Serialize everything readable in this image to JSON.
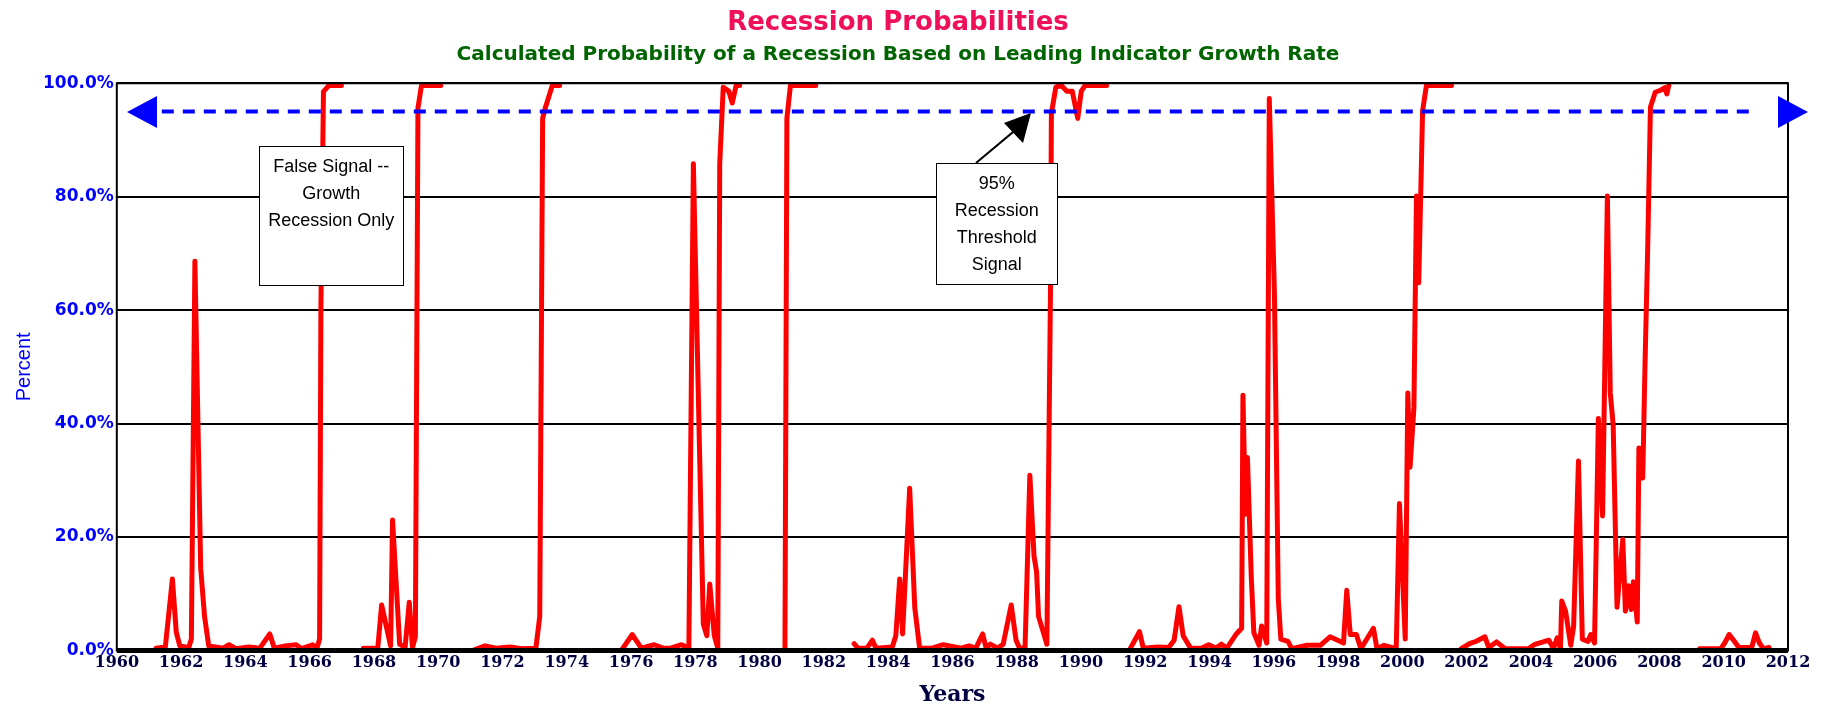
{
  "chart_data": {
    "type": "line",
    "title": "Recession Probabilities",
    "subtitle": "Calculated Probability of a Recession Based on Leading Indicator Growth Rate",
    "xlabel": "Years",
    "ylabel": "Percent",
    "x": [
      1961.22,
      1961.51,
      1961.73,
      1961.85,
      1961.96,
      1962.24,
      1962.32,
      1962.43,
      1962.61,
      1962.73,
      1962.86,
      1963.32,
      1963.49,
      1963.71,
      1964.11,
      1964.45,
      1964.76,
      1964.9,
      1965.24,
      1965.58,
      1965.75,
      1966.09,
      1966.23,
      1966.31,
      1966.35,
      1966.43,
      1966.6,
      1966.99,
      1967.3,
      1967.67,
      1968.12,
      1968.24,
      1968.52,
      1968.58,
      1968.8,
      1968.97,
      1969.1,
      1969.2,
      1969.29,
      1969.37,
      1969.48,
      1970.08,
      1970.6,
      1971.12,
      1971.46,
      1971.8,
      1972.25,
      1972.59,
      1973.04,
      1973.16,
      1973.25,
      1973.33,
      1973.55,
      1973.78,
      1974.7,
      1975.7,
      1976.04,
      1976.32,
      1976.72,
      1977.0,
      1977.23,
      1977.57,
      1977.8,
      1977.94,
      1978.13,
      1978.25,
      1978.36,
      1978.45,
      1978.59,
      1978.7,
      1978.76,
      1978.87,
      1979.04,
      1979.15,
      1979.27,
      1979.38,
      1980.1,
      1980.79,
      1980.85,
      1980.96,
      1981.75,
      1982.3,
      1982.94,
      1983.06,
      1983.34,
      1983.51,
      1983.62,
      1984.13,
      1984.24,
      1984.36,
      1984.45,
      1984.67,
      1984.83,
      1984.98,
      1985.37,
      1985.71,
      1986.28,
      1986.51,
      1986.73,
      1986.94,
      1987.05,
      1987.18,
      1987.41,
      1987.58,
      1987.83,
      1987.98,
      1988.09,
      1988.26,
      1988.41,
      1988.54,
      1988.62,
      1988.68,
      1988.94,
      1989.05,
      1989.08,
      1989.22,
      1989.39,
      1989.56,
      1989.73,
      1989.9,
      1990.01,
      1990.13,
      1990.8,
      1991.2,
      1991.54,
      1991.82,
      1991.94,
      1992.39,
      1992.73,
      1992.9,
      1993.05,
      1993.18,
      1993.41,
      1993.75,
      1993.97,
      1994.2,
      1994.37,
      1994.54,
      1994.82,
      1995.0,
      1995.04,
      1995.12,
      1995.18,
      1995.3,
      1995.38,
      1995.54,
      1995.62,
      1995.78,
      1995.86,
      1996.02,
      1996.14,
      1996.22,
      1996.44,
      1996.56,
      1997.04,
      1997.45,
      1997.75,
      1998.17,
      1998.27,
      1998.38,
      1998.57,
      1998.71,
      1999.1,
      1999.21,
      1999.43,
      1999.81,
      1999.91,
      2000.09,
      2000.17,
      2000.24,
      2000.36,
      2000.44,
      2000.51,
      2000.63,
      2000.75,
      2001.53,
      2001.7,
      2001.83,
      2002.13,
      2002.3,
      2002.57,
      2002.69,
      2002.93,
      2003.2,
      2003.92,
      2004.1,
      2004.56,
      2004.7,
      2004.82,
      2004.92,
      2004.96,
      2005.08,
      2005.24,
      2005.33,
      2005.48,
      2005.6,
      2005.78,
      2005.86,
      2005.98,
      2006.1,
      2006.23,
      2006.38,
      2006.47,
      2006.56,
      2006.68,
      2006.86,
      2006.94,
      2007.04,
      2007.12,
      2007.19,
      2007.31,
      2007.36,
      2007.48,
      2007.55,
      2007.63,
      2007.72,
      2007.87,
      2008.05,
      2008.17,
      2008.23,
      2008.29,
      2008.8,
      2009.25,
      2009.91,
      2010.03,
      2010.17,
      2010.33,
      2010.47,
      2010.87,
      2010.99,
      2011.11,
      2011.23,
      2011.41
    ],
    "series": [
      {
        "color": "#ff0000",
        "values": [
          0.4,
          0.6,
          12.6,
          3.2,
          0.8,
          0.5,
          2,
          68.6,
          14.5,
          6,
          0.8,
          0.4,
          1,
          0.3,
          0.6,
          0.4,
          2.9,
          0.4,
          0.8,
          1,
          0.3,
          1,
          0.4,
          2,
          60,
          98.5,
          99.6,
          99.6,
          null,
          0.4,
          0.4,
          8,
          0.8,
          23,
          1.1,
          0.5,
          8.5,
          0.5,
          2.4,
          95.6,
          99.6,
          99.6,
          null,
          0.1,
          0.8,
          0.4,
          0.6,
          0.3,
          0.4,
          6,
          93.8,
          95.6,
          99.6,
          99.6,
          null,
          0,
          2.8,
          0.4,
          1,
          0.4,
          0.4,
          1,
          0.4,
          85.8,
          35.7,
          4.6,
          2.6,
          11.7,
          2.6,
          0.4,
          85.8,
          99.3,
          98.6,
          96.5,
          99.6,
          99.6,
          null,
          0.4,
          93.8,
          99.6,
          99.6,
          null,
          1.2,
          0.4,
          0.4,
          1.8,
          0.4,
          0.6,
          2.6,
          12.6,
          2.9,
          28.6,
          7.5,
          0.4,
          0.4,
          1,
          0.4,
          0.8,
          0.4,
          2.9,
          0.4,
          1.1,
          0.4,
          1.1,
          8,
          1.8,
          0.4,
          0.4,
          30.9,
          16.6,
          13.8,
          6,
          1.1,
          62.6,
          94.7,
          99.3,
          99.6,
          98.6,
          98.6,
          93.8,
          98.6,
          99.6,
          99.6,
          null,
          0.4,
          3.3,
          0.4,
          0.6,
          0.5,
          1.8,
          7.7,
          2.6,
          0.4,
          0.4,
          1,
          0.4,
          1.1,
          0.4,
          2.8,
          3.9,
          45,
          24,
          34,
          12.9,
          3.1,
          0.9,
          4.3,
          1.3,
          97.3,
          62.9,
          9.1,
          2,
          1.6,
          0.3,
          0.9,
          0.9,
          2.4,
          1.3,
          10.6,
          2.8,
          2.8,
          0.3,
          3.9,
          0.3,
          0.9,
          0.3,
          25.9,
          2,
          45.4,
          32.3,
          42.8,
          80.1,
          64.8,
          95.1,
          99.6,
          99.6,
          null,
          0.3,
          1.3,
          1.6,
          2.4,
          0.5,
          1.5,
          0.3,
          0.3,
          1,
          1.8,
          0.3,
          2.2,
          0.3,
          8.7,
          6.9,
          0.9,
          4.3,
          33.4,
          2,
          1.6,
          2.8,
          1.3,
          40.9,
          23.7,
          80.1,
          45.4,
          39.8,
          7.6,
          19.6,
          6.9,
          11.4,
          7.2,
          12.1,
          5,
          35.7,
          30.4,
          50.2,
          69.7,
          95.8,
          98.4,
          98.8,
          99.2,
          98.1,
          99.6,
          null,
          0.3,
          0.3,
          1.3,
          2.8,
          1.6,
          0.5,
          0.5,
          3.1,
          1.3,
          0.3,
          0.5
        ]
      }
    ],
    "xlim": [
      1960,
      2012
    ],
    "xticks": [
      1960,
      1962,
      1964,
      1966,
      1968,
      1970,
      1972,
      1974,
      1976,
      1978,
      1980,
      1982,
      1984,
      1986,
      1988,
      1990,
      1992,
      1994,
      1996,
      1998,
      2000,
      2002,
      2004,
      2006,
      2008,
      2010,
      2012
    ],
    "ylim": [
      0,
      100
    ],
    "yticks": [
      {
        "value": 0,
        "label": "0.0%"
      },
      {
        "value": 20,
        "label": "20.0%"
      },
      {
        "value": 40,
        "label": "40.0%"
      },
      {
        "value": 60,
        "label": "60.0%"
      },
      {
        "value": 80,
        "label": "80.0%"
      },
      {
        "value": 100,
        "label": "100.0%"
      }
    ],
    "grid": "y",
    "line_style": "solid",
    "ref_lines": [
      {
        "axis": "y",
        "value": 95,
        "color": "#0000ff",
        "line_style": "dashed"
      }
    ],
    "annotations": [
      "False Signal -- Growth Recession Only",
      "95% Recession Threshold Signal"
    ]
  }
}
